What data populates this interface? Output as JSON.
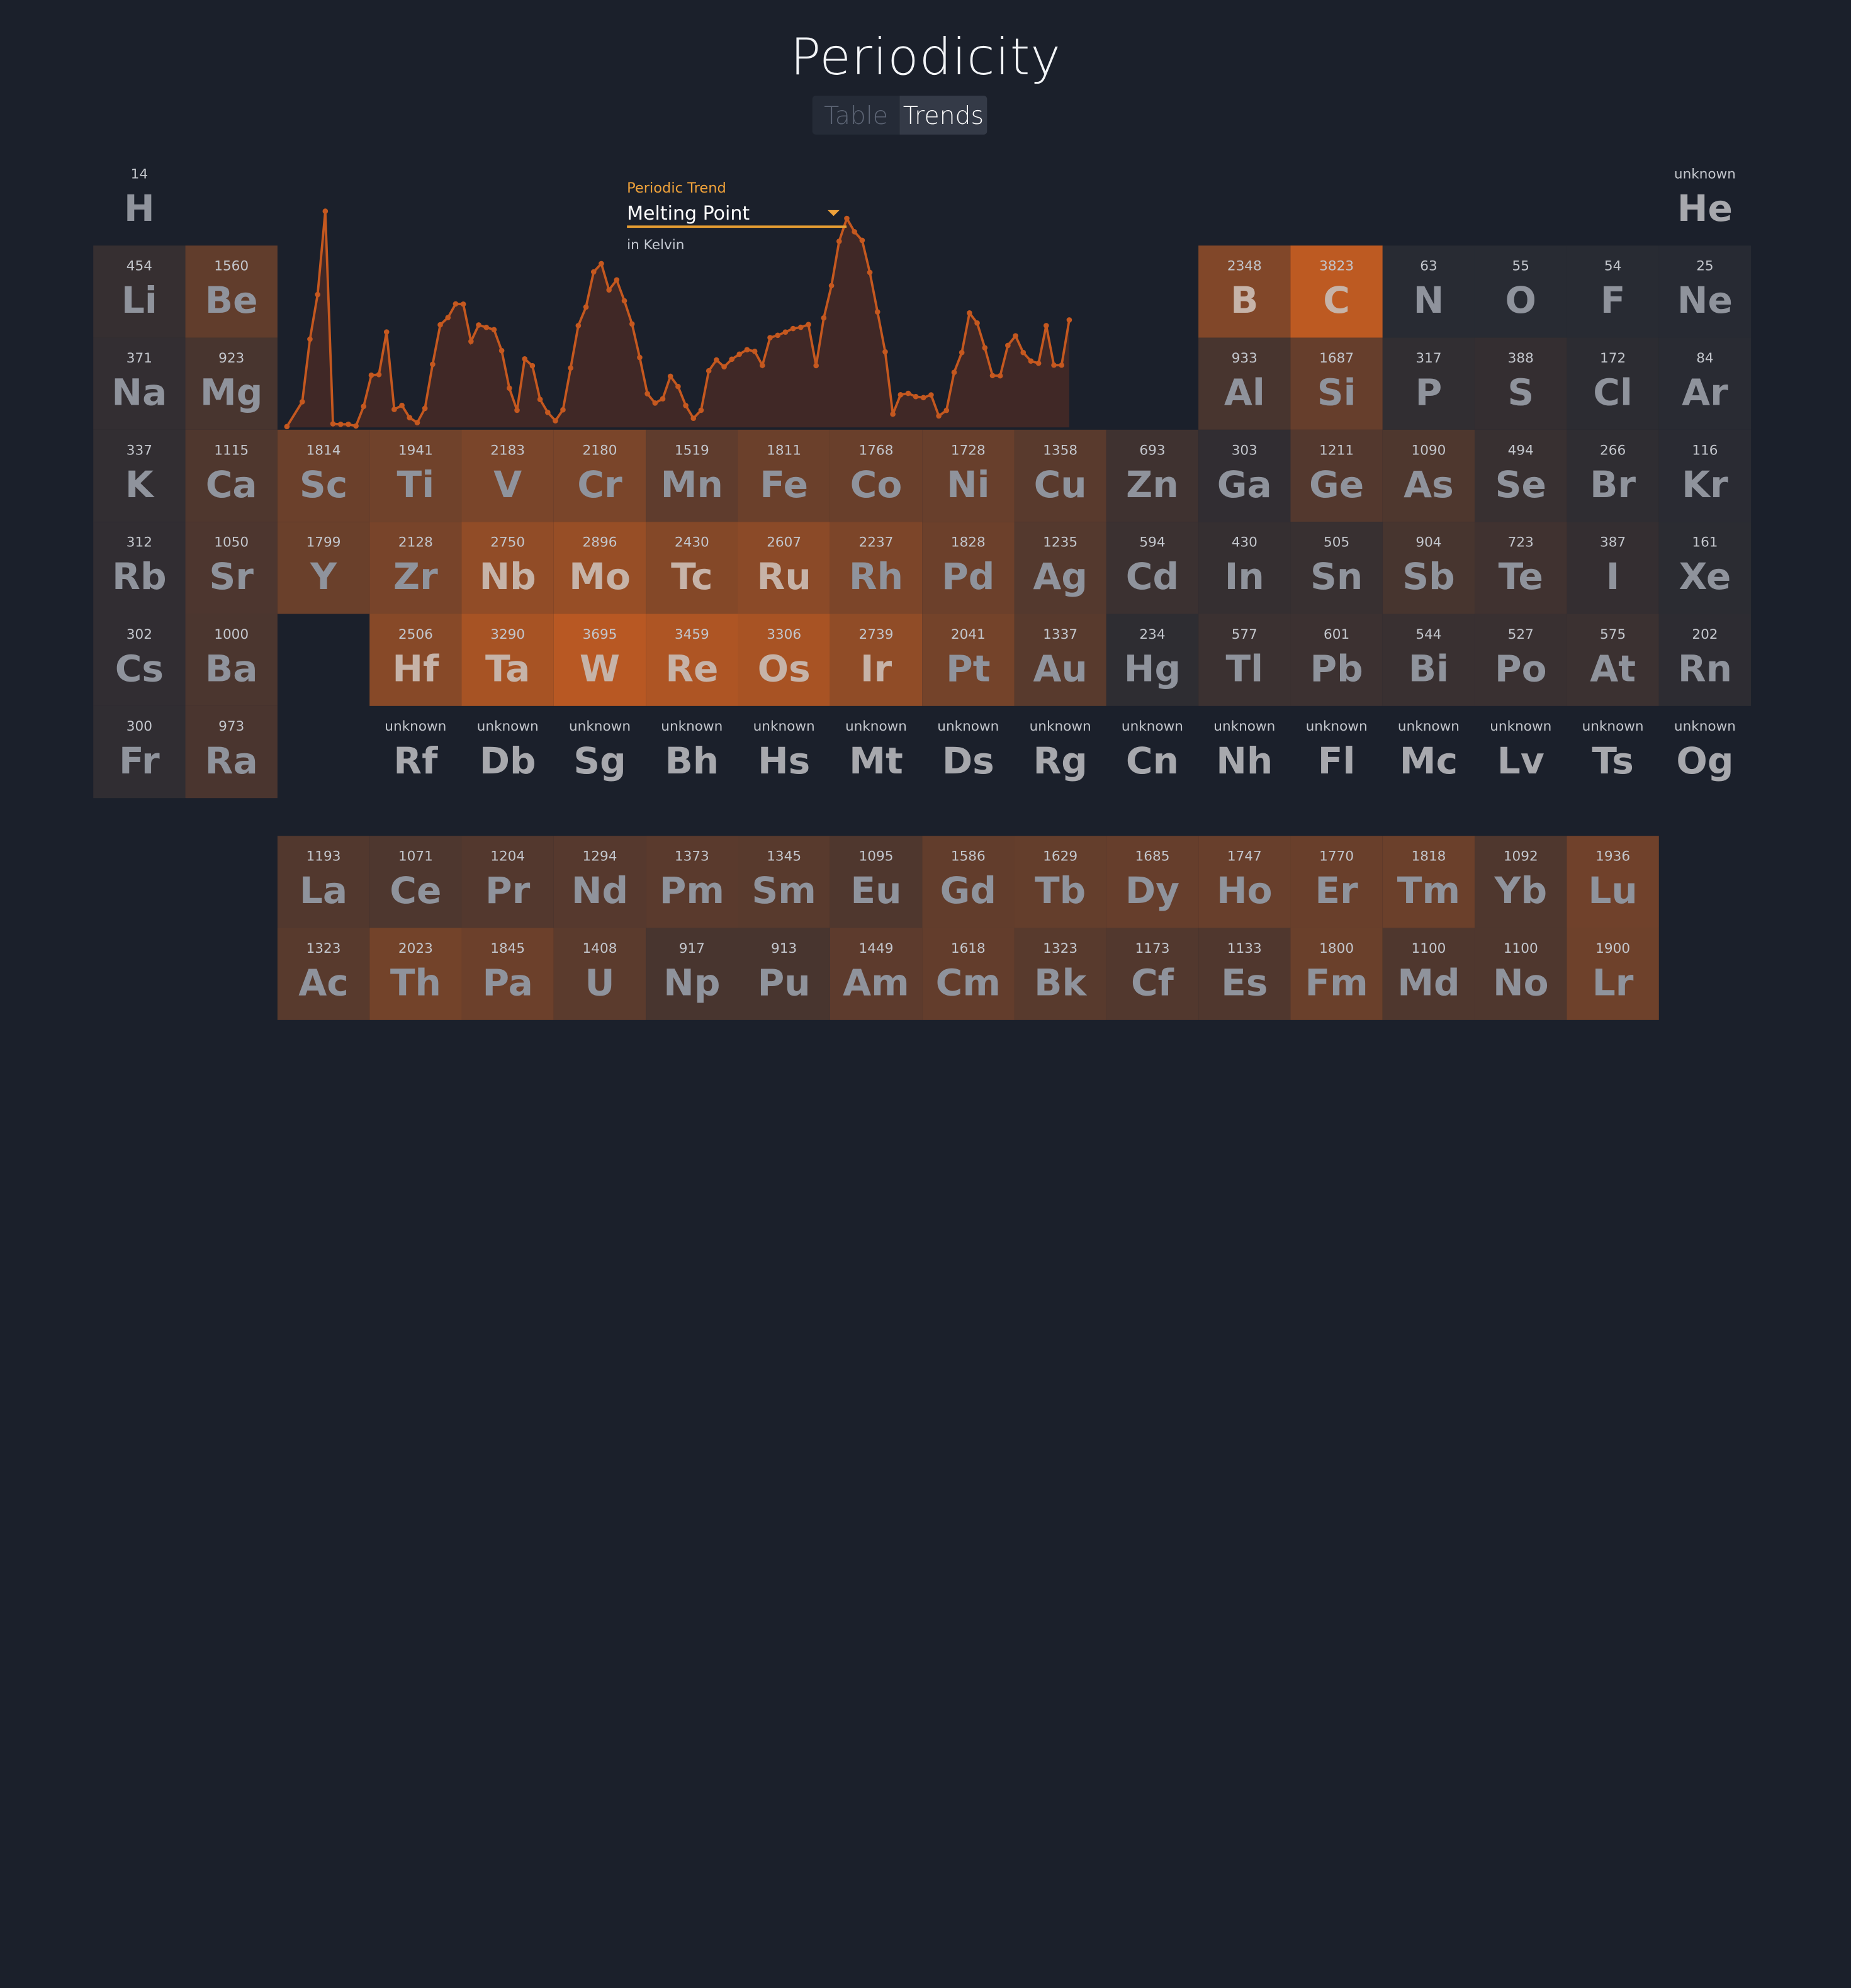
{
  "app": {
    "title": "Periodicity"
  },
  "tabs": [
    {
      "label": "Table",
      "active": false
    },
    {
      "label": "Trends",
      "active": true
    }
  ],
  "trend_selector": {
    "label": "Periodic Trend",
    "selected": "Melting Point",
    "unit": "in Kelvin",
    "icon": "caret-down-icon"
  },
  "colors": {
    "background": "#1b202b",
    "accent": "#f0a23a",
    "heat_low": "#262a33",
    "heat_high": "#bd5a22",
    "chart_line": "#c5581f"
  },
  "elements": [
    {
      "s": "H",
      "v": "14",
      "r": 0,
      "c": 0
    },
    {
      "s": "He",
      "v": "unknown",
      "r": 0,
      "c": 17
    },
    {
      "s": "Li",
      "v": "454",
      "r": 1,
      "c": 0
    },
    {
      "s": "Be",
      "v": "1560",
      "r": 1,
      "c": 1
    },
    {
      "s": "B",
      "v": "2348",
      "r": 1,
      "c": 12
    },
    {
      "s": "C",
      "v": "3823",
      "r": 1,
      "c": 13
    },
    {
      "s": "N",
      "v": "63",
      "r": 1,
      "c": 14
    },
    {
      "s": "O",
      "v": "55",
      "r": 1,
      "c": 15
    },
    {
      "s": "F",
      "v": "54",
      "r": 1,
      "c": 16
    },
    {
      "s": "Ne",
      "v": "25",
      "r": 1,
      "c": 17
    },
    {
      "s": "Na",
      "v": "371",
      "r": 2,
      "c": 0
    },
    {
      "s": "Mg",
      "v": "923",
      "r": 2,
      "c": 1
    },
    {
      "s": "Al",
      "v": "933",
      "r": 2,
      "c": 12
    },
    {
      "s": "Si",
      "v": "1687",
      "r": 2,
      "c": 13
    },
    {
      "s": "P",
      "v": "317",
      "r": 2,
      "c": 14
    },
    {
      "s": "S",
      "v": "388",
      "r": 2,
      "c": 15
    },
    {
      "s": "Cl",
      "v": "172",
      "r": 2,
      "c": 16
    },
    {
      "s": "Ar",
      "v": "84",
      "r": 2,
      "c": 17
    },
    {
      "s": "K",
      "v": "337",
      "r": 3,
      "c": 0
    },
    {
      "s": "Ca",
      "v": "1115",
      "r": 3,
      "c": 1
    },
    {
      "s": "Sc",
      "v": "1814",
      "r": 3,
      "c": 2
    },
    {
      "s": "Ti",
      "v": "1941",
      "r": 3,
      "c": 3
    },
    {
      "s": "V",
      "v": "2183",
      "r": 3,
      "c": 4
    },
    {
      "s": "Cr",
      "v": "2180",
      "r": 3,
      "c": 5
    },
    {
      "s": "Mn",
      "v": "1519",
      "r": 3,
      "c": 6
    },
    {
      "s": "Fe",
      "v": "1811",
      "r": 3,
      "c": 7
    },
    {
      "s": "Co",
      "v": "1768",
      "r": 3,
      "c": 8
    },
    {
      "s": "Ni",
      "v": "1728",
      "r": 3,
      "c": 9
    },
    {
      "s": "Cu",
      "v": "1358",
      "r": 3,
      "c": 10
    },
    {
      "s": "Zn",
      "v": "693",
      "r": 3,
      "c": 11
    },
    {
      "s": "Ga",
      "v": "303",
      "r": 3,
      "c": 12
    },
    {
      "s": "Ge",
      "v": "1211",
      "r": 3,
      "c": 13
    },
    {
      "s": "As",
      "v": "1090",
      "r": 3,
      "c": 14
    },
    {
      "s": "Se",
      "v": "494",
      "r": 3,
      "c": 15
    },
    {
      "s": "Br",
      "v": "266",
      "r": 3,
      "c": 16
    },
    {
      "s": "Kr",
      "v": "116",
      "r": 3,
      "c": 17
    },
    {
      "s": "Rb",
      "v": "312",
      "r": 4,
      "c": 0
    },
    {
      "s": "Sr",
      "v": "1050",
      "r": 4,
      "c": 1
    },
    {
      "s": "Y",
      "v": "1799",
      "r": 4,
      "c": 2
    },
    {
      "s": "Zr",
      "v": "2128",
      "r": 4,
      "c": 3
    },
    {
      "s": "Nb",
      "v": "2750",
      "r": 4,
      "c": 4
    },
    {
      "s": "Mo",
      "v": "2896",
      "r": 4,
      "c": 5
    },
    {
      "s": "Tc",
      "v": "2430",
      "r": 4,
      "c": 6
    },
    {
      "s": "Ru",
      "v": "2607",
      "r": 4,
      "c": 7
    },
    {
      "s": "Rh",
      "v": "2237",
      "r": 4,
      "c": 8
    },
    {
      "s": "Pd",
      "v": "1828",
      "r": 4,
      "c": 9
    },
    {
      "s": "Ag",
      "v": "1235",
      "r": 4,
      "c": 10
    },
    {
      "s": "Cd",
      "v": "594",
      "r": 4,
      "c": 11
    },
    {
      "s": "In",
      "v": "430",
      "r": 4,
      "c": 12
    },
    {
      "s": "Sn",
      "v": "505",
      "r": 4,
      "c": 13
    },
    {
      "s": "Sb",
      "v": "904",
      "r": 4,
      "c": 14
    },
    {
      "s": "Te",
      "v": "723",
      "r": 4,
      "c": 15
    },
    {
      "s": "I",
      "v": "387",
      "r": 4,
      "c": 16
    },
    {
      "s": "Xe",
      "v": "161",
      "r": 4,
      "c": 17
    },
    {
      "s": "Cs",
      "v": "302",
      "r": 5,
      "c": 0
    },
    {
      "s": "Ba",
      "v": "1000",
      "r": 5,
      "c": 1
    },
    {
      "s": "Hf",
      "v": "2506",
      "r": 5,
      "c": 3
    },
    {
      "s": "Ta",
      "v": "3290",
      "r": 5,
      "c": 4
    },
    {
      "s": "W",
      "v": "3695",
      "r": 5,
      "c": 5
    },
    {
      "s": "Re",
      "v": "3459",
      "r": 5,
      "c": 6
    },
    {
      "s": "Os",
      "v": "3306",
      "r": 5,
      "c": 7
    },
    {
      "s": "Ir",
      "v": "2739",
      "r": 5,
      "c": 8
    },
    {
      "s": "Pt",
      "v": "2041",
      "r": 5,
      "c": 9
    },
    {
      "s": "Au",
      "v": "1337",
      "r": 5,
      "c": 10
    },
    {
      "s": "Hg",
      "v": "234",
      "r": 5,
      "c": 11
    },
    {
      "s": "Tl",
      "v": "577",
      "r": 5,
      "c": 12
    },
    {
      "s": "Pb",
      "v": "601",
      "r": 5,
      "c": 13
    },
    {
      "s": "Bi",
      "v": "544",
      "r": 5,
      "c": 14
    },
    {
      "s": "Po",
      "v": "527",
      "r": 5,
      "c": 15
    },
    {
      "s": "At",
      "v": "575",
      "r": 5,
      "c": 16
    },
    {
      "s": "Rn",
      "v": "202",
      "r": 5,
      "c": 17
    },
    {
      "s": "Fr",
      "v": "300",
      "r": 6,
      "c": 0
    },
    {
      "s": "Ra",
      "v": "973",
      "r": 6,
      "c": 1
    },
    {
      "s": "Rf",
      "v": "unknown",
      "r": 6,
      "c": 3
    },
    {
      "s": "Db",
      "v": "unknown",
      "r": 6,
      "c": 4
    },
    {
      "s": "Sg",
      "v": "unknown",
      "r": 6,
      "c": 5
    },
    {
      "s": "Bh",
      "v": "unknown",
      "r": 6,
      "c": 6
    },
    {
      "s": "Hs",
      "v": "unknown",
      "r": 6,
      "c": 7
    },
    {
      "s": "Mt",
      "v": "unknown",
      "r": 6,
      "c": 8
    },
    {
      "s": "Ds",
      "v": "unknown",
      "r": 6,
      "c": 9
    },
    {
      "s": "Rg",
      "v": "unknown",
      "r": 6,
      "c": 10
    },
    {
      "s": "Cn",
      "v": "unknown",
      "r": 6,
      "c": 11
    },
    {
      "s": "Nh",
      "v": "unknown",
      "r": 6,
      "c": 12
    },
    {
      "s": "Fl",
      "v": "unknown",
      "r": 6,
      "c": 13
    },
    {
      "s": "Mc",
      "v": "unknown",
      "r": 6,
      "c": 14
    },
    {
      "s": "Lv",
      "v": "unknown",
      "r": 6,
      "c": 15
    },
    {
      "s": "Ts",
      "v": "unknown",
      "r": 6,
      "c": 16
    },
    {
      "s": "Og",
      "v": "unknown",
      "r": 6,
      "c": 17
    },
    {
      "s": "La",
      "v": "1193",
      "r": 7,
      "c": 2
    },
    {
      "s": "Ce",
      "v": "1071",
      "r": 7,
      "c": 3
    },
    {
      "s": "Pr",
      "v": "1204",
      "r": 7,
      "c": 4
    },
    {
      "s": "Nd",
      "v": "1294",
      "r": 7,
      "c": 5
    },
    {
      "s": "Pm",
      "v": "1373",
      "r": 7,
      "c": 6
    },
    {
      "s": "Sm",
      "v": "1345",
      "r": 7,
      "c": 7
    },
    {
      "s": "Eu",
      "v": "1095",
      "r": 7,
      "c": 8
    },
    {
      "s": "Gd",
      "v": "1586",
      "r": 7,
      "c": 9
    },
    {
      "s": "Tb",
      "v": "1629",
      "r": 7,
      "c": 10
    },
    {
      "s": "Dy",
      "v": "1685",
      "r": 7,
      "c": 11
    },
    {
      "s": "Ho",
      "v": "1747",
      "r": 7,
      "c": 12
    },
    {
      "s": "Er",
      "v": "1770",
      "r": 7,
      "c": 13
    },
    {
      "s": "Tm",
      "v": "1818",
      "r": 7,
      "c": 14
    },
    {
      "s": "Yb",
      "v": "1092",
      "r": 7,
      "c": 15
    },
    {
      "s": "Lu",
      "v": "1936",
      "r": 7,
      "c": 16
    },
    {
      "s": "Ac",
      "v": "1323",
      "r": 8,
      "c": 2
    },
    {
      "s": "Th",
      "v": "2023",
      "r": 8,
      "c": 3
    },
    {
      "s": "Pa",
      "v": "1845",
      "r": 8,
      "c": 4
    },
    {
      "s": "U",
      "v": "1408",
      "r": 8,
      "c": 5
    },
    {
      "s": "Np",
      "v": "917",
      "r": 8,
      "c": 6
    },
    {
      "s": "Pu",
      "v": "913",
      "r": 8,
      "c": 7
    },
    {
      "s": "Am",
      "v": "1449",
      "r": 8,
      "c": 8
    },
    {
      "s": "Cm",
      "v": "1618",
      "r": 8,
      "c": 9
    },
    {
      "s": "Bk",
      "v": "1323",
      "r": 8,
      "c": 10
    },
    {
      "s": "Cf",
      "v": "1173",
      "r": 8,
      "c": 11
    },
    {
      "s": "Es",
      "v": "1133",
      "r": 8,
      "c": 12
    },
    {
      "s": "Fm",
      "v": "1800",
      "r": 8,
      "c": 13
    },
    {
      "s": "Md",
      "v": "1100",
      "r": 8,
      "c": 14
    },
    {
      "s": "No",
      "v": "1100",
      "r": 8,
      "c": 15
    },
    {
      "s": "Lr",
      "v": "1900",
      "r": 8,
      "c": 16
    }
  ],
  "chart_data": {
    "type": "area",
    "ylabel": "",
    "x": [
      1,
      2,
      3,
      4,
      5,
      6,
      7,
      8,
      9,
      10,
      11,
      12,
      13,
      14,
      15,
      16,
      17,
      18,
      19,
      20,
      21,
      22,
      23,
      24,
      25,
      26,
      27,
      28,
      29,
      30,
      31,
      32,
      33,
      34,
      35,
      36,
      37,
      38,
      39,
      40,
      41,
      42,
      43,
      44,
      45,
      46,
      47,
      48,
      49,
      50,
      51,
      52,
      53,
      54,
      55,
      56,
      57,
      58,
      59,
      60,
      61,
      62,
      63,
      64,
      65,
      66,
      67,
      68,
      69,
      70,
      71,
      72,
      73,
      74,
      75,
      76,
      77,
      78,
      79,
      80,
      81,
      82,
      83,
      84,
      85,
      86,
      87,
      88,
      89,
      90,
      91,
      92,
      93,
      94,
      95,
      96,
      97,
      98,
      99,
      100,
      101,
      102,
      103,
      104,
      105,
      106,
      107,
      108,
      109,
      110,
      111,
      112,
      113,
      114,
      115,
      116,
      117,
      118
    ],
    "values": [
      14,
      null,
      454,
      1560,
      2348,
      3823,
      63,
      55,
      54,
      25,
      371,
      923,
      933,
      1687,
      317,
      388,
      172,
      84,
      337,
      1115,
      1814,
      1941,
      2183,
      2180,
      1519,
      1811,
      1768,
      1728,
      1358,
      693,
      303,
      1211,
      1090,
      494,
      266,
      116,
      312,
      1050,
      1799,
      2128,
      2750,
      2896,
      2430,
      2607,
      2237,
      1828,
      1235,
      594,
      430,
      505,
      904,
      723,
      387,
      161,
      302,
      1000,
      1193,
      1071,
      1204,
      1294,
      1373,
      1345,
      1095,
      1586,
      1629,
      1685,
      1747,
      1770,
      1818,
      1092,
      1936,
      2506,
      3290,
      3695,
      3459,
      3306,
      2739,
      2041,
      1337,
      234,
      577,
      601,
      544,
      527,
      575,
      202,
      300,
      973,
      1323,
      2023,
      1845,
      1408,
      917,
      913,
      1449,
      1618,
      1323,
      1173,
      1133,
      1800,
      1100,
      1100,
      1900,
      null,
      null,
      null,
      null,
      null,
      null,
      null,
      null,
      null,
      null,
      null,
      null,
      null,
      null,
      null
    ],
    "ylim": [
      0,
      4100
    ]
  }
}
